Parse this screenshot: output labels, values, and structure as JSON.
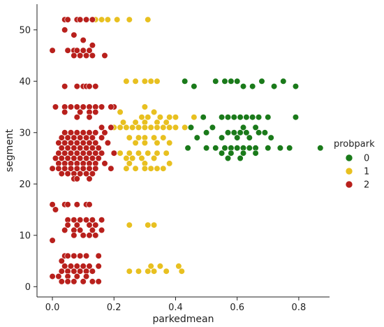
{
  "chart_data": {
    "type": "scatter",
    "title": "",
    "xlabel": "parkedmean",
    "ylabel": "segment",
    "xlim": [
      -0.05,
      0.9
    ],
    "ylim": [
      -2,
      55
    ],
    "xticks": [
      0.0,
      0.2,
      0.4,
      0.6,
      0.8
    ],
    "xtick_labels": [
      "0.0",
      "0.2",
      "0.4",
      "0.6",
      "0.8"
    ],
    "yticks": [
      0,
      10,
      20,
      30,
      40,
      50
    ],
    "ytick_labels": [
      "0",
      "10",
      "20",
      "30",
      "40",
      "50"
    ],
    "grid": false,
    "legend": {
      "title": "probpark",
      "placement": "right",
      "entries": [
        "0",
        "1",
        "2"
      ]
    },
    "colors": {
      "0": "#1a7a1a",
      "1": "#e8c020",
      "2": "#b8201c"
    },
    "series": [
      {
        "name": "0",
        "points": [
          [
            0.43,
            40
          ],
          [
            0.46,
            39
          ],
          [
            0.53,
            40
          ],
          [
            0.56,
            40
          ],
          [
            0.58,
            40
          ],
          [
            0.6,
            40
          ],
          [
            0.62,
            39
          ],
          [
            0.65,
            39
          ],
          [
            0.68,
            40
          ],
          [
            0.72,
            39
          ],
          [
            0.75,
            40
          ],
          [
            0.79,
            39
          ],
          [
            0.49,
            33
          ],
          [
            0.55,
            33
          ],
          [
            0.57,
            33
          ],
          [
            0.59,
            33
          ],
          [
            0.61,
            33
          ],
          [
            0.63,
            33
          ],
          [
            0.65,
            33
          ],
          [
            0.67,
            33
          ],
          [
            0.7,
            33
          ],
          [
            0.79,
            33
          ],
          [
            0.45,
            31
          ],
          [
            0.52,
            31
          ],
          [
            0.62,
            31
          ],
          [
            0.66,
            31
          ],
          [
            0.5,
            30
          ],
          [
            0.57,
            30
          ],
          [
            0.59,
            30
          ],
          [
            0.61,
            30
          ],
          [
            0.63,
            30
          ],
          [
            0.67,
            30
          ],
          [
            0.69,
            30
          ],
          [
            0.47,
            29
          ],
          [
            0.55,
            29
          ],
          [
            0.6,
            29
          ],
          [
            0.64,
            29
          ],
          [
            0.71,
            29
          ],
          [
            0.44,
            27
          ],
          [
            0.5,
            27
          ],
          [
            0.53,
            27
          ],
          [
            0.56,
            27
          ],
          [
            0.58,
            27
          ],
          [
            0.6,
            27
          ],
          [
            0.62,
            27
          ],
          [
            0.64,
            27
          ],
          [
            0.66,
            27
          ],
          [
            0.7,
            27
          ],
          [
            0.74,
            27
          ],
          [
            0.77,
            27
          ],
          [
            0.87,
            27
          ],
          [
            0.55,
            26
          ],
          [
            0.58,
            26
          ],
          [
            0.62,
            26
          ],
          [
            0.66,
            26
          ],
          [
            0.57,
            25
          ],
          [
            0.61,
            25
          ]
        ]
      },
      {
        "name": "1",
        "points": [
          [
            0.14,
            52
          ],
          [
            0.16,
            52
          ],
          [
            0.18,
            52
          ],
          [
            0.21,
            52
          ],
          [
            0.25,
            52
          ],
          [
            0.31,
            52
          ],
          [
            0.24,
            40
          ],
          [
            0.27,
            40
          ],
          [
            0.3,
            40
          ],
          [
            0.32,
            40
          ],
          [
            0.34,
            40
          ],
          [
            0.22,
            34
          ],
          [
            0.3,
            35
          ],
          [
            0.33,
            34
          ],
          [
            0.29,
            33
          ],
          [
            0.31,
            33
          ],
          [
            0.35,
            33
          ],
          [
            0.38,
            33
          ],
          [
            0.4,
            33
          ],
          [
            0.46,
            33
          ],
          [
            0.23,
            32
          ],
          [
            0.27,
            32
          ],
          [
            0.3,
            32
          ],
          [
            0.34,
            32
          ],
          [
            0.37,
            32
          ],
          [
            0.2,
            31
          ],
          [
            0.22,
            31
          ],
          [
            0.24,
            31
          ],
          [
            0.26,
            31
          ],
          [
            0.28,
            31
          ],
          [
            0.3,
            31
          ],
          [
            0.32,
            31
          ],
          [
            0.34,
            31
          ],
          [
            0.36,
            31
          ],
          [
            0.38,
            31
          ],
          [
            0.4,
            31
          ],
          [
            0.43,
            31
          ],
          [
            0.25,
            29
          ],
          [
            0.28,
            29
          ],
          [
            0.3,
            29
          ],
          [
            0.33,
            29
          ],
          [
            0.36,
            29
          ],
          [
            0.27,
            28
          ],
          [
            0.3,
            28
          ],
          [
            0.34,
            28
          ],
          [
            0.38,
            28
          ],
          [
            0.22,
            26
          ],
          [
            0.25,
            26
          ],
          [
            0.28,
            26
          ],
          [
            0.31,
            26
          ],
          [
            0.34,
            26
          ],
          [
            0.37,
            26
          ],
          [
            0.24,
            25
          ],
          [
            0.26,
            25
          ],
          [
            0.29,
            25
          ],
          [
            0.33,
            25
          ],
          [
            0.25,
            24
          ],
          [
            0.3,
            24
          ],
          [
            0.38,
            24
          ],
          [
            0.24,
            23
          ],
          [
            0.27,
            23
          ],
          [
            0.3,
            23
          ],
          [
            0.32,
            23
          ],
          [
            0.34,
            23
          ],
          [
            0.36,
            23
          ],
          [
            0.25,
            12
          ],
          [
            0.31,
            12
          ],
          [
            0.33,
            12
          ],
          [
            0.25,
            3
          ],
          [
            0.28,
            3
          ],
          [
            0.31,
            3
          ],
          [
            0.33,
            3
          ],
          [
            0.37,
            3
          ],
          [
            0.42,
            3
          ],
          [
            0.32,
            4
          ],
          [
            0.35,
            4
          ],
          [
            0.41,
            4
          ]
        ]
      },
      {
        "name": "2",
        "points": [
          [
            0.04,
            52
          ],
          [
            0.05,
            52
          ],
          [
            0.08,
            52
          ],
          [
            0.09,
            52
          ],
          [
            0.11,
            52
          ],
          [
            0.13,
            52
          ],
          [
            0.04,
            50
          ],
          [
            0.07,
            49
          ],
          [
            0.1,
            48
          ],
          [
            0.0,
            46
          ],
          [
            0.05,
            46
          ],
          [
            0.07,
            46
          ],
          [
            0.08,
            46
          ],
          [
            0.1,
            46
          ],
          [
            0.12,
            46
          ],
          [
            0.07,
            45
          ],
          [
            0.09,
            45
          ],
          [
            0.11,
            45
          ],
          [
            0.13,
            45
          ],
          [
            0.17,
            45
          ],
          [
            0.13,
            47
          ],
          [
            0.08,
            39
          ],
          [
            0.1,
            39
          ],
          [
            0.11,
            39
          ],
          [
            0.12,
            39
          ],
          [
            0.14,
            39
          ],
          [
            0.04,
            39
          ],
          [
            0.01,
            35
          ],
          [
            0.04,
            35
          ],
          [
            0.06,
            35
          ],
          [
            0.08,
            35
          ],
          [
            0.1,
            35
          ],
          [
            0.12,
            35
          ],
          [
            0.14,
            35
          ],
          [
            0.16,
            35
          ],
          [
            0.2,
            35
          ],
          [
            0.04,
            34
          ],
          [
            0.09,
            34
          ],
          [
            0.12,
            34
          ],
          [
            0.14,
            34
          ],
          [
            0.19,
            35
          ],
          [
            0.08,
            33
          ],
          [
            0.12,
            33
          ],
          [
            0.16,
            31
          ],
          [
            0.19,
            31
          ],
          [
            0.04,
            30
          ],
          [
            0.06,
            30
          ],
          [
            0.08,
            30
          ],
          [
            0.1,
            30
          ],
          [
            0.12,
            30
          ],
          [
            0.14,
            30
          ],
          [
            0.17,
            30
          ],
          [
            0.03,
            29
          ],
          [
            0.05,
            29
          ],
          [
            0.07,
            29
          ],
          [
            0.09,
            29
          ],
          [
            0.11,
            29
          ],
          [
            0.13,
            29
          ],
          [
            0.16,
            29
          ],
          [
            0.02,
            28
          ],
          [
            0.04,
            28
          ],
          [
            0.06,
            28
          ],
          [
            0.08,
            28
          ],
          [
            0.1,
            28
          ],
          [
            0.12,
            28
          ],
          [
            0.14,
            28
          ],
          [
            0.18,
            28
          ],
          [
            0.03,
            27
          ],
          [
            0.05,
            27
          ],
          [
            0.07,
            27
          ],
          [
            0.09,
            27
          ],
          [
            0.11,
            27
          ],
          [
            0.13,
            27
          ],
          [
            0.15,
            27
          ],
          [
            0.02,
            26
          ],
          [
            0.04,
            26
          ],
          [
            0.06,
            26
          ],
          [
            0.08,
            26
          ],
          [
            0.1,
            26
          ],
          [
            0.12,
            26
          ],
          [
            0.14,
            26
          ],
          [
            0.16,
            26
          ],
          [
            0.2,
            26
          ],
          [
            0.01,
            25
          ],
          [
            0.03,
            25
          ],
          [
            0.05,
            25
          ],
          [
            0.07,
            25
          ],
          [
            0.09,
            25
          ],
          [
            0.11,
            25
          ],
          [
            0.13,
            25
          ],
          [
            0.15,
            25
          ],
          [
            0.02,
            24
          ],
          [
            0.04,
            24
          ],
          [
            0.06,
            24
          ],
          [
            0.08,
            24
          ],
          [
            0.1,
            24
          ],
          [
            0.12,
            24
          ],
          [
            0.14,
            24
          ],
          [
            0.17,
            24
          ],
          [
            0.0,
            23
          ],
          [
            0.02,
            23
          ],
          [
            0.04,
            23
          ],
          [
            0.06,
            23
          ],
          [
            0.08,
            23
          ],
          [
            0.1,
            23
          ],
          [
            0.12,
            23
          ],
          [
            0.14,
            23
          ],
          [
            0.19,
            23
          ],
          [
            0.03,
            22
          ],
          [
            0.05,
            22
          ],
          [
            0.07,
            22
          ],
          [
            0.09,
            22
          ],
          [
            0.11,
            22
          ],
          [
            0.13,
            22
          ],
          [
            0.07,
            21
          ],
          [
            0.08,
            21
          ],
          [
            0.12,
            21
          ],
          [
            0.0,
            16
          ],
          [
            0.04,
            16
          ],
          [
            0.05,
            16
          ],
          [
            0.08,
            16
          ],
          [
            0.11,
            16
          ],
          [
            0.12,
            16
          ],
          [
            0.01,
            15
          ],
          [
            0.05,
            13
          ],
          [
            0.07,
            13
          ],
          [
            0.09,
            13
          ],
          [
            0.11,
            13
          ],
          [
            0.13,
            13
          ],
          [
            0.16,
            13
          ],
          [
            0.05,
            12
          ],
          [
            0.08,
            12
          ],
          [
            0.12,
            12
          ],
          [
            0.14,
            12
          ],
          [
            0.04,
            11
          ],
          [
            0.07,
            11
          ],
          [
            0.09,
            11
          ],
          [
            0.13,
            11
          ],
          [
            0.16,
            11
          ],
          [
            0.07,
            10
          ],
          [
            0.1,
            10
          ],
          [
            0.12,
            10
          ],
          [
            0.14,
            10
          ],
          [
            0.0,
            9
          ],
          [
            0.04,
            6
          ],
          [
            0.05,
            6
          ],
          [
            0.07,
            6
          ],
          [
            0.09,
            6
          ],
          [
            0.11,
            6
          ],
          [
            0.15,
            6
          ],
          [
            0.03,
            5
          ],
          [
            0.04,
            4
          ],
          [
            0.06,
            4
          ],
          [
            0.08,
            4
          ],
          [
            0.1,
            4
          ],
          [
            0.12,
            4
          ],
          [
            0.15,
            4
          ],
          [
            0.03,
            3
          ],
          [
            0.05,
            3
          ],
          [
            0.07,
            3
          ],
          [
            0.09,
            3
          ],
          [
            0.11,
            3
          ],
          [
            0.13,
            3
          ],
          [
            0.0,
            2
          ],
          [
            0.02,
            2
          ],
          [
            0.05,
            2
          ],
          [
            0.08,
            2
          ],
          [
            0.11,
            2
          ],
          [
            0.03,
            1
          ],
          [
            0.05,
            1
          ],
          [
            0.07,
            1
          ],
          [
            0.1,
            1
          ],
          [
            0.13,
            1
          ],
          [
            0.15,
            1
          ]
        ]
      }
    ]
  }
}
